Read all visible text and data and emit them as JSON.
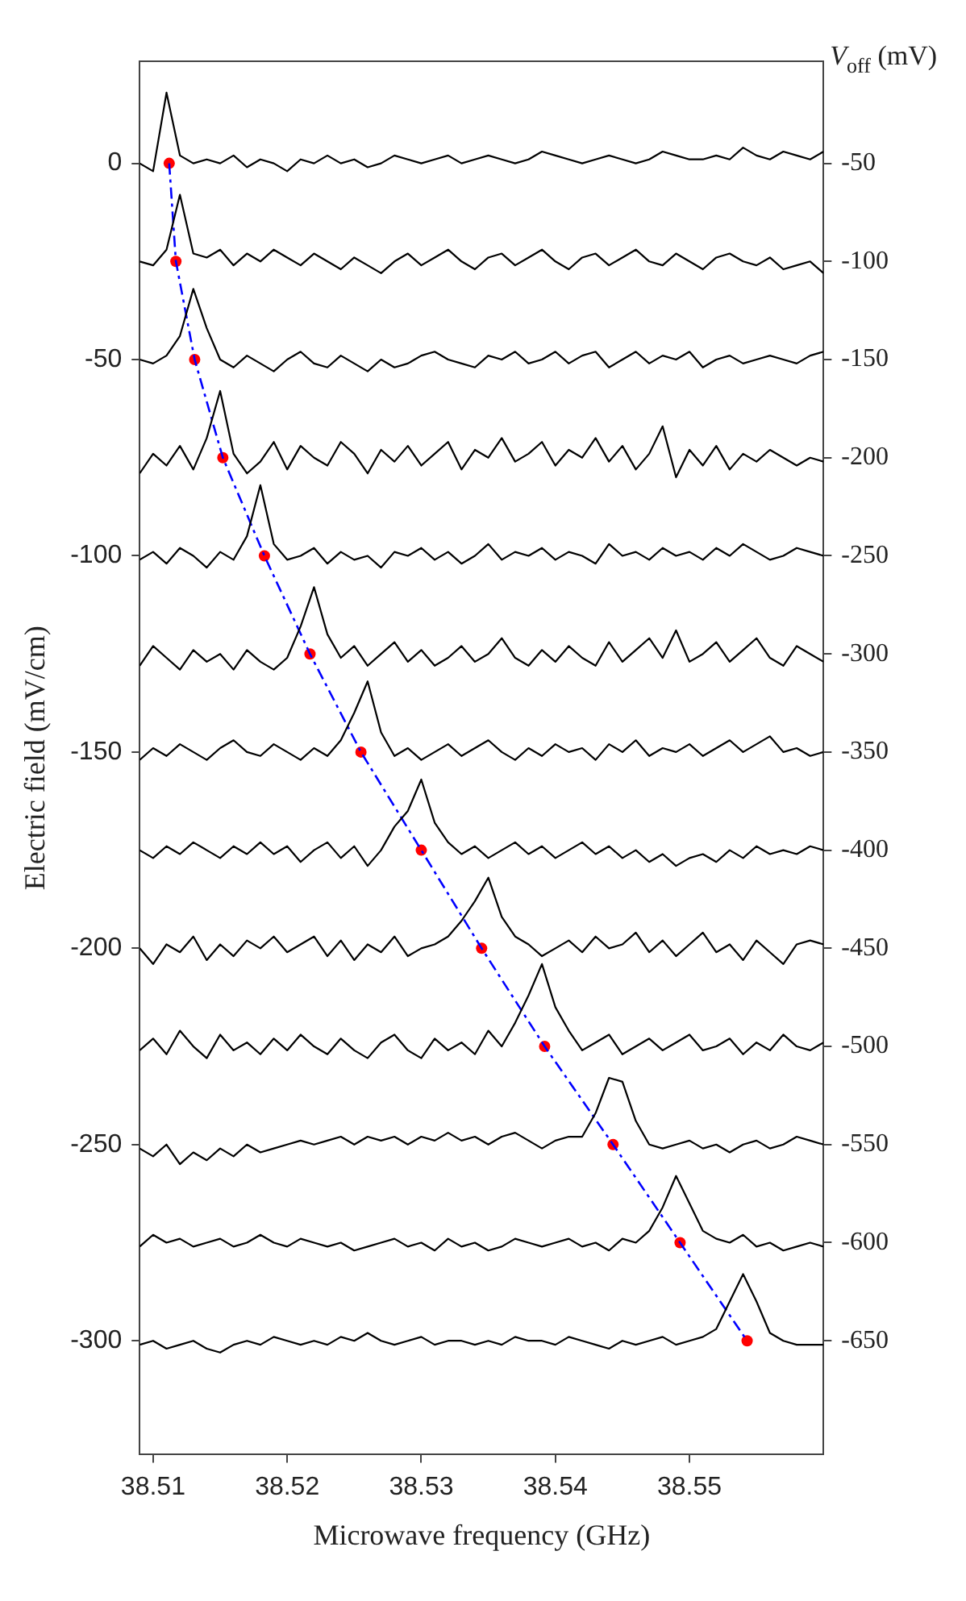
{
  "chart_data": {
    "type": "line",
    "xlabel": "Microwave frequency (GHz)",
    "ylabel": "Electric field (mV/cm)",
    "y2label": "V$_{off}$ (mV)",
    "x": [
      38.509,
      38.51,
      38.511,
      38.512,
      38.513,
      38.514,
      38.515,
      38.516,
      38.517,
      38.518,
      38.519,
      38.52,
      38.521,
      38.522,
      38.523,
      38.524,
      38.525,
      38.526,
      38.527,
      38.528,
      38.529,
      38.53,
      38.531,
      38.532,
      38.533,
      38.534,
      38.535,
      38.536,
      38.537,
      38.538,
      38.539,
      38.54,
      38.541,
      38.542,
      38.543,
      38.544,
      38.545,
      38.546,
      38.547,
      38.548,
      38.549,
      38.55,
      38.551,
      38.552,
      38.553,
      38.554,
      38.555,
      38.556,
      38.557,
      38.558,
      38.559,
      38.56
    ],
    "xlim": [
      38.509,
      38.56
    ],
    "xticks": [
      38.51,
      38.52,
      38.53,
      38.54,
      38.55
    ],
    "ylim": [
      -329,
      26
    ],
    "yticks": [
      -300,
      -250,
      -200,
      -150,
      -100,
      -50,
      0
    ],
    "y2lim": [
      -708,
      2
    ],
    "y2ticks": [
      -650,
      -600,
      -550,
      -500,
      -450,
      -400,
      -350,
      -300,
      -250,
      -200,
      -150,
      -100,
      -50
    ],
    "legend": false,
    "grid": false,
    "series": [
      {
        "color": "#000000",
        "values": [
          0,
          -2,
          18,
          2,
          0,
          1,
          0,
          2,
          -1,
          1,
          0,
          -2,
          1,
          0,
          2,
          0,
          1,
          -1,
          0,
          2,
          1,
          0,
          1,
          2,
          0,
          1,
          2,
          1,
          0,
          1,
          3,
          2,
          1,
          0,
          1,
          2,
          1,
          0,
          1,
          3,
          2,
          1,
          1,
          2,
          1,
          4,
          2,
          1,
          3,
          2,
          1,
          3
        ]
      },
      {
        "color": "#000000",
        "values": [
          -25,
          -26,
          -22,
          -8,
          -23,
          -24,
          -22,
          -26,
          -23,
          -25,
          -22,
          -24,
          -26,
          -23,
          -25,
          -27,
          -24,
          -26,
          -28,
          -25,
          -23,
          -26,
          -24,
          -22,
          -25,
          -27,
          -24,
          -23,
          -26,
          -24,
          -22,
          -25,
          -27,
          -24,
          -23,
          -26,
          -24,
          -22,
          -25,
          -26,
          -23,
          -25,
          -27,
          -24,
          -23,
          -25,
          -26,
          -24,
          -27,
          -26,
          -25,
          -28
        ]
      },
      {
        "color": "#000000",
        "values": [
          -50,
          -51,
          -49,
          -44,
          -32,
          -42,
          -50,
          -52,
          -49,
          -51,
          -53,
          -50,
          -48,
          -51,
          -52,
          -49,
          -51,
          -53,
          -50,
          -52,
          -51,
          -49,
          -48,
          -50,
          -51,
          -52,
          -49,
          -50,
          -48,
          -51,
          -50,
          -48,
          -51,
          -49,
          -48,
          -52,
          -50,
          -48,
          -51,
          -49,
          -50,
          -48,
          -52,
          -50,
          -49,
          -51,
          -50,
          -49,
          -50,
          -51,
          -49,
          -48
        ]
      },
      {
        "color": "#000000",
        "values": [
          -79,
          -74,
          -77,
          -72,
          -78,
          -70,
          -58,
          -74,
          -79,
          -76,
          -71,
          -78,
          -72,
          -75,
          -77,
          -71,
          -74,
          -79,
          -73,
          -76,
          -72,
          -77,
          -74,
          -71,
          -78,
          -73,
          -75,
          -70,
          -76,
          -74,
          -71,
          -77,
          -73,
          -75,
          -70,
          -76,
          -72,
          -78,
          -74,
          -67,
          -80,
          -73,
          -77,
          -72,
          -78,
          -74,
          -76,
          -73,
          -75,
          -77,
          -75,
          -76
        ]
      },
      {
        "color": "#000000",
        "values": [
          -101,
          -99,
          -102,
          -98,
          -100,
          -103,
          -99,
          -101,
          -95,
          -82,
          -97,
          -101,
          -100,
          -98,
          -102,
          -99,
          -101,
          -100,
          -103,
          -99,
          -100,
          -98,
          -101,
          -99,
          -102,
          -100,
          -97,
          -101,
          -99,
          -100,
          -98,
          -101,
          -99,
          -100,
          -102,
          -97,
          -100,
          -99,
          -101,
          -98,
          -100,
          -99,
          -101,
          -98,
          -100,
          -97,
          -99,
          -101,
          -100,
          -98,
          -99,
          -100
        ]
      },
      {
        "color": "#000000",
        "values": [
          -128,
          -123,
          -126,
          -129,
          -124,
          -127,
          -125,
          -129,
          -124,
          -127,
          -129,
          -126,
          -118,
          -108,
          -120,
          -126,
          -123,
          -128,
          -125,
          -122,
          -127,
          -124,
          -128,
          -126,
          -123,
          -127,
          -125,
          -121,
          -126,
          -128,
          -124,
          -127,
          -123,
          -126,
          -128,
          -122,
          -127,
          -124,
          -121,
          -126,
          -119,
          -127,
          -125,
          -122,
          -127,
          -124,
          -121,
          -126,
          -128,
          -123,
          -125,
          -127
        ]
      },
      {
        "color": "#000000",
        "values": [
          -152,
          -149,
          -151,
          -148,
          -150,
          -152,
          -149,
          -147,
          -150,
          -151,
          -148,
          -150,
          -152,
          -149,
          -151,
          -147,
          -140,
          -132,
          -145,
          -151,
          -149,
          -152,
          -150,
          -148,
          -151,
          -149,
          -147,
          -150,
          -152,
          -149,
          -151,
          -148,
          -150,
          -149,
          -152,
          -148,
          -150,
          -147,
          -151,
          -149,
          -150,
          -148,
          -151,
          -149,
          -147,
          -150,
          -148,
          -146,
          -150,
          -149,
          -151,
          -150
        ]
      },
      {
        "color": "#000000",
        "values": [
          -175,
          -177,
          -174,
          -176,
          -173,
          -175,
          -177,
          -174,
          -176,
          -173,
          -176,
          -174,
          -178,
          -175,
          -173,
          -177,
          -174,
          -179,
          -175,
          -169,
          -165,
          -157,
          -168,
          -173,
          -176,
          -174,
          -177,
          -175,
          -173,
          -176,
          -174,
          -177,
          -175,
          -173,
          -176,
          -174,
          -177,
          -175,
          -178,
          -176,
          -179,
          -177,
          -176,
          -178,
          -175,
          -177,
          -174,
          -176,
          -175,
          -176,
          -174,
          -175
        ]
      },
      {
        "color": "#000000",
        "values": [
          -200,
          -204,
          -199,
          -201,
          -197,
          -203,
          -199,
          -202,
          -198,
          -200,
          -197,
          -201,
          -199,
          -197,
          -202,
          -198,
          -203,
          -199,
          -201,
          -197,
          -202,
          -200,
          -199,
          -197,
          -193,
          -188,
          -182,
          -192,
          -197,
          -199,
          -202,
          -200,
          -198,
          -201,
          -197,
          -200,
          -199,
          -196,
          -201,
          -198,
          -202,
          -199,
          -196,
          -201,
          -199,
          -203,
          -198,
          -201,
          -204,
          -199,
          -198,
          -199
        ]
      },
      {
        "color": "#000000",
        "values": [
          -226,
          -223,
          -227,
          -221,
          -225,
          -228,
          -222,
          -226,
          -224,
          -227,
          -223,
          -226,
          -222,
          -225,
          -227,
          -223,
          -226,
          -228,
          -224,
          -222,
          -226,
          -228,
          -223,
          -226,
          -224,
          -227,
          -221,
          -225,
          -219,
          -212,
          -204,
          -215,
          -221,
          -226,
          -224,
          -222,
          -227,
          -225,
          -223,
          -226,
          -224,
          -222,
          -226,
          -225,
          -223,
          -227,
          -224,
          -226,
          -222,
          -225,
          -226,
          -224
        ]
      },
      {
        "color": "#000000",
        "values": [
          -251,
          -253,
          -250,
          -255,
          -252,
          -254,
          -251,
          -253,
          -250,
          -252,
          -251,
          -250,
          -249,
          -250,
          -249,
          -248,
          -250,
          -248,
          -249,
          -248,
          -250,
          -248,
          -249,
          -247,
          -249,
          -248,
          -250,
          -248,
          -247,
          -249,
          -251,
          -249,
          -248,
          -248,
          -242,
          -233,
          -234,
          -244,
          -250,
          -251,
          -250,
          -249,
          -251,
          -250,
          -252,
          -250,
          -249,
          -251,
          -250,
          -248,
          -249,
          -250
        ]
      },
      {
        "color": "#000000",
        "values": [
          -276,
          -273,
          -275,
          -274,
          -276,
          -275,
          -274,
          -276,
          -275,
          -273,
          -275,
          -276,
          -274,
          -275,
          -276,
          -275,
          -277,
          -276,
          -275,
          -274,
          -276,
          -275,
          -277,
          -274,
          -276,
          -275,
          -277,
          -276,
          -274,
          -275,
          -276,
          -275,
          -274,
          -276,
          -275,
          -277,
          -274,
          -275,
          -272,
          -266,
          -258,
          -265,
          -272,
          -274,
          -275,
          -273,
          -276,
          -275,
          -277,
          -276,
          -275,
          -276
        ]
      },
      {
        "color": "#000000",
        "values": [
          -301,
          -300,
          -302,
          -301,
          -300,
          -302,
          -303,
          -301,
          -300,
          -301,
          -299,
          -300,
          -301,
          -300,
          -301,
          -299,
          -300,
          -298,
          -300,
          -301,
          -300,
          -299,
          -301,
          -300,
          -300,
          -301,
          -300,
          -301,
          -299,
          -300,
          -300,
          -301,
          -299,
          -300,
          -301,
          -302,
          -300,
          -301,
          -300,
          -299,
          -301,
          -300,
          -299,
          -297,
          -290,
          -283,
          -290,
          -298,
          -300,
          -301,
          -301,
          -301
        ]
      },
      {
        "type": "line",
        "color": "#0000ff",
        "line_style": "dashed",
        "x": [
          38.5112,
          38.5117,
          38.5131,
          38.5152,
          38.5183,
          38.5217,
          38.5255,
          38.53,
          38.5345,
          38.5392,
          38.5443,
          38.5493,
          38.5543
        ],
        "values": [
          0,
          -25,
          -50,
          -75,
          -100,
          -125,
          -150,
          -175,
          -200,
          -225,
          -250,
          -275,
          -300
        ]
      },
      {
        "type": "scatter",
        "color": "#ff0000",
        "marker": "circle",
        "x": [
          38.5112,
          38.5117,
          38.5131,
          38.5152,
          38.5183,
          38.5217,
          38.5255,
          38.53,
          38.5345,
          38.5392,
          38.5443,
          38.5493,
          38.5543
        ],
        "values": [
          0,
          -25,
          -50,
          -75,
          -100,
          -125,
          -150,
          -175,
          -200,
          -225,
          -250,
          -275,
          -300
        ]
      }
    ]
  }
}
